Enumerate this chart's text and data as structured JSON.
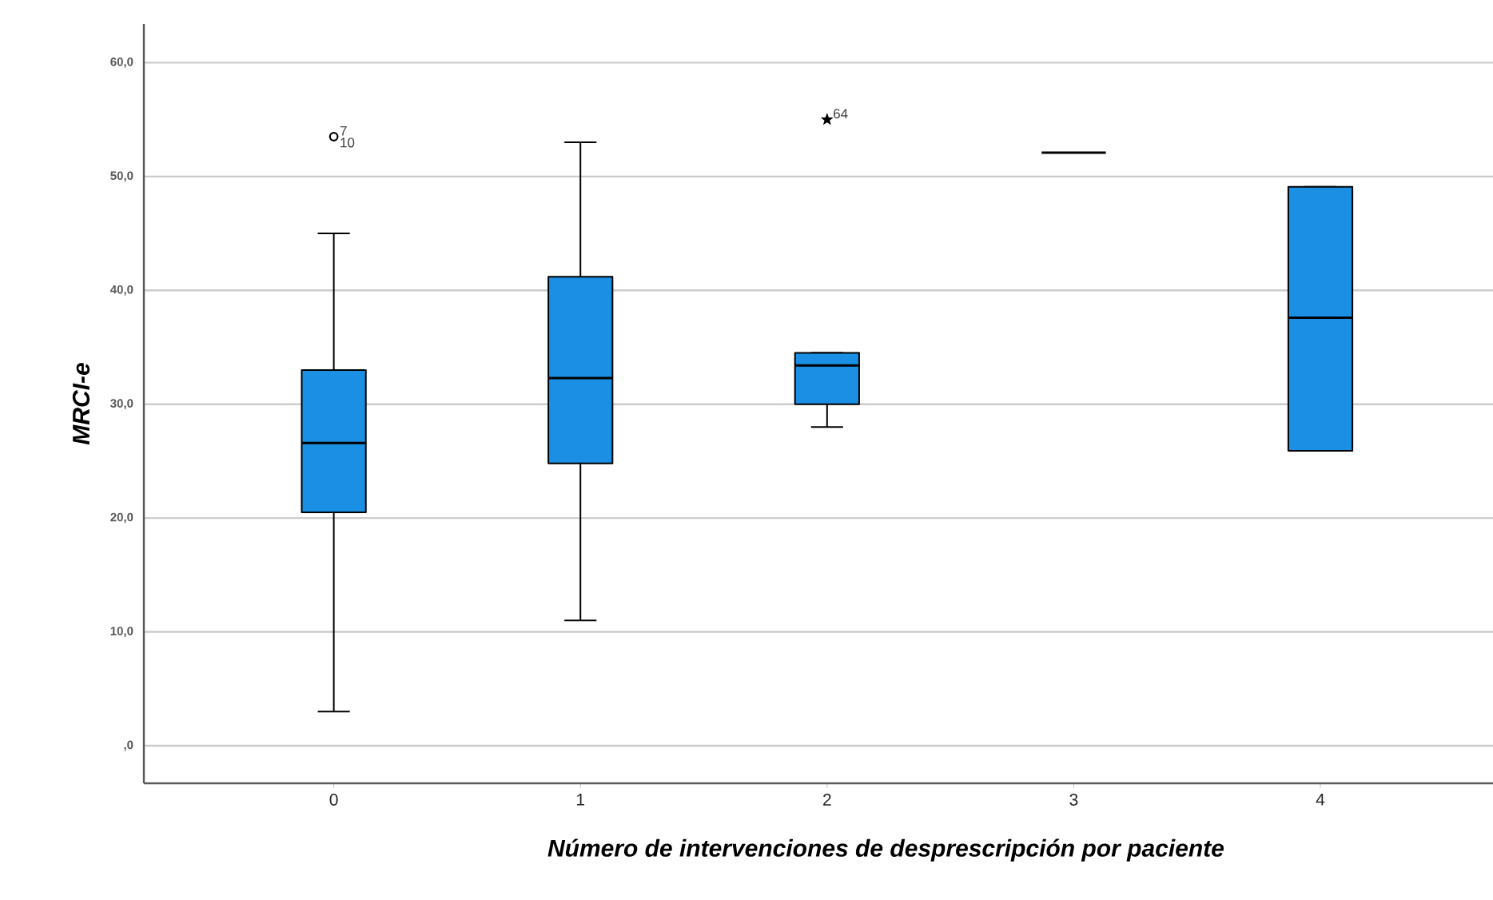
{
  "chart_data": {
    "type": "box",
    "xlabel": "Número de intervenciones de desprescripción por paciente",
    "ylabel": "MRCI-e",
    "categories": [
      "0",
      "1",
      "2",
      "3",
      "4"
    ],
    "color": "#1a8fe3",
    "boxes": [
      {
        "low": 3.0,
        "q1": 20.5,
        "median": 26.6,
        "q3": 33.0,
        "high": 45.0,
        "outliers": [
          53.5
        ]
      },
      {
        "low": 11.0,
        "q1": 24.8,
        "median": 32.3,
        "q3": 41.2,
        "high": 53.0
      },
      {
        "low": 28.0,
        "q1": 30.0,
        "median": 33.4,
        "q3": 34.5,
        "high": 34.5
      },
      {
        "low": 52.1,
        "q1": 52.1,
        "median": 52.1,
        "q3": 52.1,
        "high": 52.1
      },
      {
        "low": 25.9,
        "q1": 25.9,
        "median": 37.6,
        "q3": 49.1,
        "high": 49.1
      }
    ],
    "series": [
      {
        "type": "scatter",
        "marker": "star",
        "color": "#000000",
        "x": [
          "2"
        ],
        "values": [
          55.0
        ]
      }
    ],
    "ylim": [
      -3.3,
      63.4
    ],
    "yticks": [
      {
        "value": 0,
        "label": ",0"
      },
      {
        "value": 10,
        "label": "10,0"
      },
      {
        "value": 20,
        "label": "20,0"
      },
      {
        "value": 30,
        "label": "30,0"
      },
      {
        "value": 40,
        "label": "40,0"
      },
      {
        "value": 50,
        "label": "50,0"
      },
      {
        "value": 60,
        "label": "60,0"
      }
    ],
    "grid": "y",
    "annotations": [
      "7",
      "10",
      "64"
    ]
  }
}
